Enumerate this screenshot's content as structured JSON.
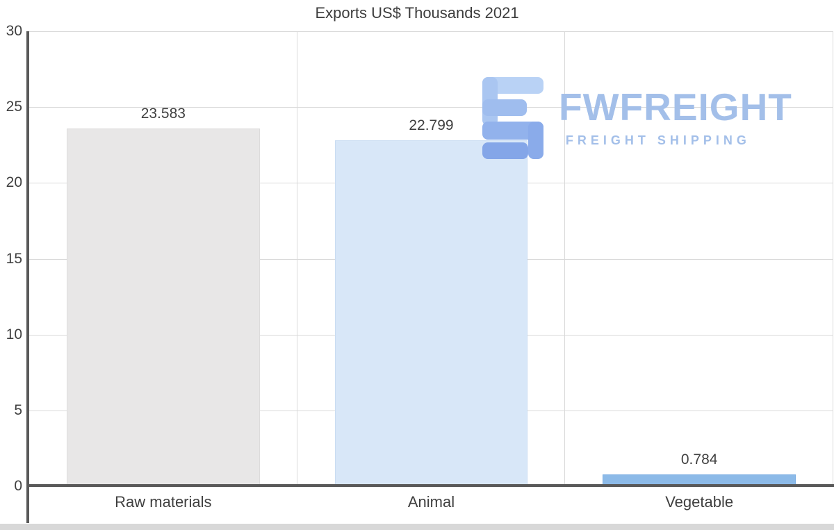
{
  "chart_data": {
    "type": "bar",
    "title": "Exports US$ Thousands 2021",
    "categories": [
      "Raw materials",
      "Animal",
      "Vegetable"
    ],
    "values": [
      23.583,
      22.799,
      0.784
    ],
    "value_labels": [
      "23.583",
      "22.799",
      "0.784"
    ],
    "ylim": [
      0,
      30
    ],
    "yticks": [
      0,
      5,
      10,
      15,
      20,
      25,
      30
    ],
    "grid": {
      "horizontal": true,
      "vertical_category_separators": true
    },
    "legend_position": "none",
    "bar_colors": [
      "#e8e7e7",
      "#d8e7f8",
      "#8cbae8"
    ],
    "bar_border_colors": [
      "#dddcdc",
      "#c9dcf2",
      "#7dafe3"
    ]
  },
  "watermark": {
    "brand": "FWFREIGHT",
    "tagline": "FREIGHT SHIPPING",
    "color": "#a3bfe9"
  },
  "style": {
    "axis_color": "#595959",
    "grid_color": "#d9d9d9",
    "text_color": "#404040",
    "background": "#ffffff"
  }
}
